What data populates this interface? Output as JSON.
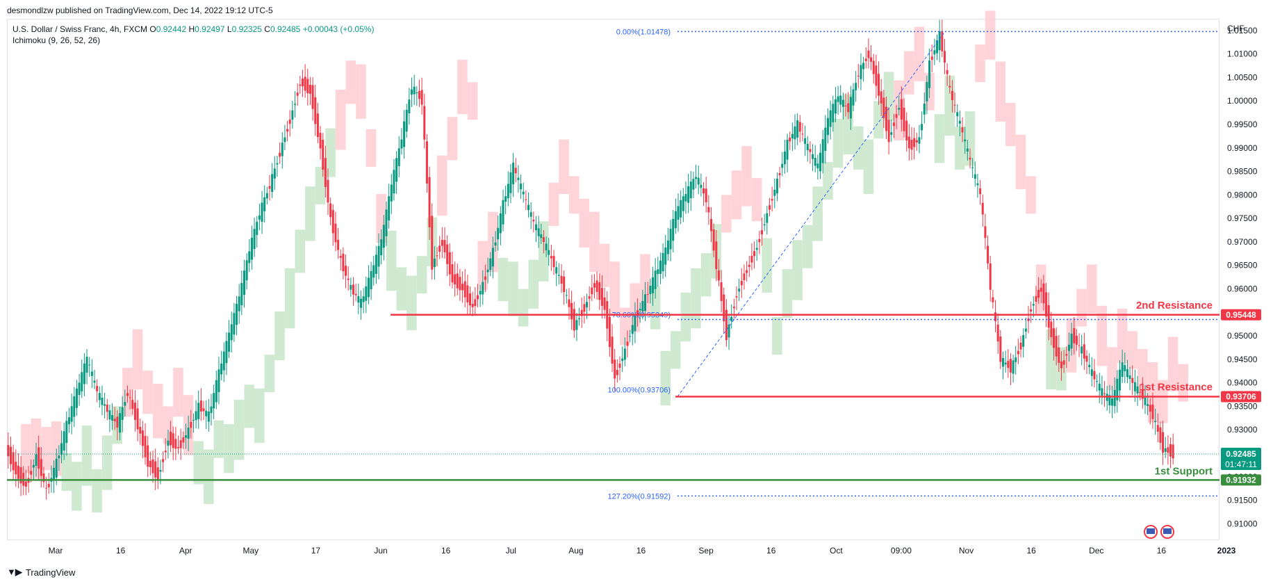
{
  "header": {
    "published": "desmondlzw published on TradingView.com, Dec 14, 2022 19:12 UTC-5"
  },
  "legend": {
    "symbol": "U.S. Dollar / Swiss Franc, 4h, FXCM",
    "o_label": "O",
    "o_value": "0.92442",
    "h_label": "H",
    "h_value": "0.92497",
    "l_label": "L",
    "l_value": "0.92325",
    "c_label": "C",
    "c_value": "0.92485",
    "change": "+0.00043 (+0.05%)",
    "indicator": "Ichimoku (9, 26, 52, 26)"
  },
  "currency": "CHF",
  "footer": {
    "brand": "TradingView"
  },
  "chart_data": {
    "type": "line",
    "title": "U.S. Dollar / Swiss Franc, 4h, FXCM",
    "ylim": [
      0.9065,
      1.0175
    ],
    "y_ticks": [
      "1.01500",
      "1.01000",
      "1.00500",
      "1.00000",
      "0.99500",
      "0.99000",
      "0.98500",
      "0.98000",
      "0.97500",
      "0.97000",
      "0.96500",
      "0.96000",
      "0.95500",
      "0.95000",
      "0.94500",
      "0.94000",
      "0.93500",
      "0.93000",
      "0.92500",
      "0.92000",
      "0.91500",
      "0.91000"
    ],
    "x_ticks": [
      "Mar",
      "16",
      "Apr",
      "May",
      "17",
      "Jun",
      "16",
      "Jul",
      "Aug",
      "16",
      "Sep",
      "16",
      "Oct",
      "09:00",
      "Nov",
      "16",
      "Dec",
      "16",
      "2023"
    ],
    "series": [
      {
        "values": [
          0.926,
          0.921,
          0.918,
          0.9245,
          0.917,
          0.923,
          0.931,
          0.938,
          0.945,
          0.938,
          0.934,
          0.931,
          0.938,
          0.931,
          0.923,
          0.92,
          0.928,
          0.926,
          0.93,
          0.935,
          0.933,
          0.942,
          0.95,
          0.958,
          0.968,
          0.976,
          0.982,
          0.989,
          0.996,
          1.004,
          1.002,
          0.99,
          0.975,
          0.966,
          0.96,
          0.957,
          0.963,
          0.97,
          0.982,
          0.992,
          1.003,
          1.0,
          0.965,
          0.97,
          0.962,
          0.96,
          0.956,
          0.961,
          0.968,
          0.978,
          0.986,
          0.98,
          0.974,
          0.97,
          0.965,
          0.96,
          0.952,
          0.956,
          0.961,
          0.956,
          0.941,
          0.947,
          0.954,
          0.958,
          0.963,
          0.968,
          0.976,
          0.98,
          0.984,
          0.979,
          0.965,
          0.95,
          0.959,
          0.964,
          0.969,
          0.976,
          0.983,
          0.991,
          0.995,
          0.99,
          0.986,
          0.996,
          1.001,
          0.998,
          1.006,
          1.01,
          1.002,
          0.992,
          0.999,
          0.99,
          0.992,
          1.008,
          1.014,
          1.002,
          0.995,
          0.987,
          0.98,
          0.96,
          0.945,
          0.943,
          0.948,
          0.956,
          0.96,
          0.95,
          0.943,
          0.95,
          0.947,
          0.942,
          0.938,
          0.936,
          0.944,
          0.94,
          0.937,
          0.933,
          0.926,
          0.9248
        ]
      }
    ],
    "annotations": {
      "fib_0": "0.00%(1.01478)",
      "fib_786": "78.60%(0.95349)",
      "fib_100": "100.00%(0.93706)",
      "fib_1272": "127.20%(0.91592)",
      "resistance_2": "2nd Resistance",
      "resistance_1": "1st Resistance",
      "support_1": "1st Support"
    },
    "levels": {
      "fib_0": 1.01478,
      "fib_786": 0.95349,
      "fib_100": 0.93706,
      "fib_1272": 0.91592,
      "resistance_2": 0.95448,
      "resistance_1": 0.93706,
      "support_1": 0.91932,
      "current": 0.92485
    },
    "price_labels": {
      "resistance_2": "0.95448",
      "resistance_1": "0.93706",
      "current": "0.92485",
      "countdown": "01:47:11",
      "support_1": "0.91932"
    },
    "colors": {
      "up": "#089981",
      "down": "#f23645",
      "resistance": "#f23645",
      "support": "#388e3c",
      "fib": "#2962ff",
      "cloud_bull": "#c8e6c9",
      "cloud_bear": "#ffcdd2",
      "current": "#089981"
    }
  }
}
